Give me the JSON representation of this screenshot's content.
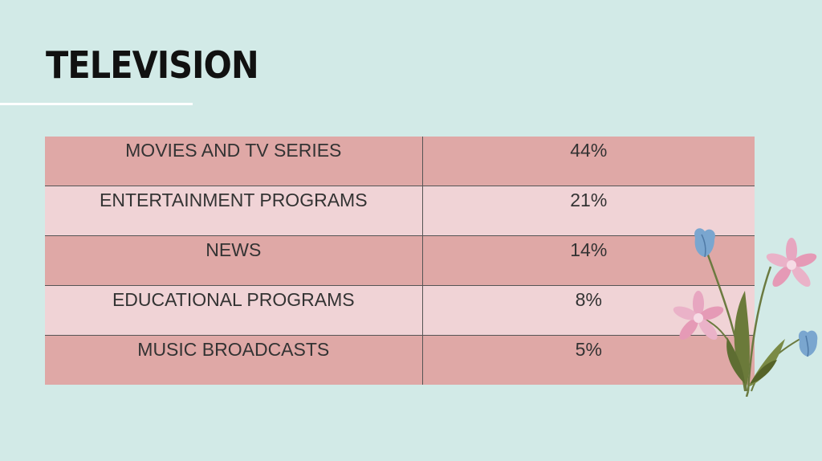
{
  "slide": {
    "title": "TELEVISION"
  },
  "table": {
    "rows": [
      {
        "category": "MOVIES AND TV SERIES",
        "share": "44%"
      },
      {
        "category": "ENTERTAINMENT PROGRAMS",
        "share": "21%"
      },
      {
        "category": "NEWS",
        "share": "14%"
      },
      {
        "category": "EDUCATIONAL PROGRAMS",
        "share": "8%"
      },
      {
        "category": "MUSIC BROADCASTS",
        "share": "5%"
      }
    ]
  },
  "colors": {
    "background": "#d2eae7",
    "row_dark": "#dfa8a6",
    "row_light": "#f0d3d6",
    "title": "#111111"
  },
  "decoration": {
    "icon": "flower-bouquet-icon"
  }
}
